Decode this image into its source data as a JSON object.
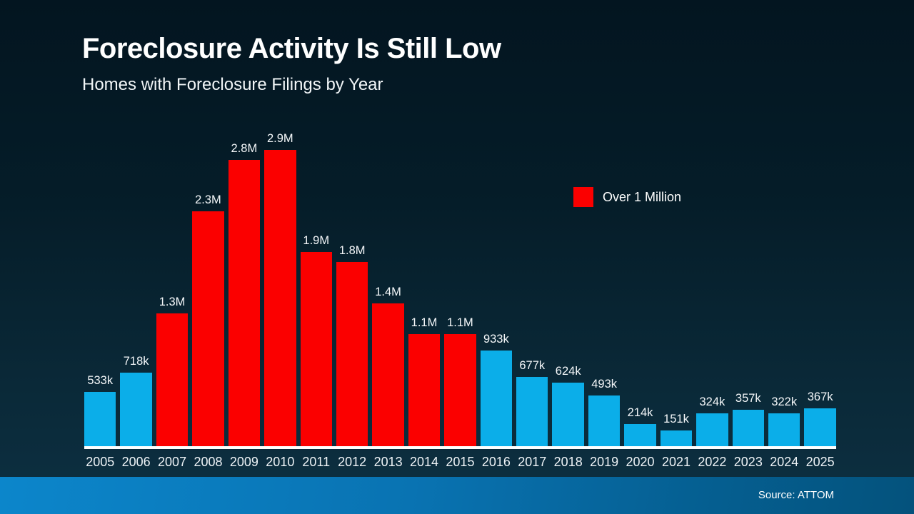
{
  "header": {
    "title": "Foreclosure Activity Is Still Low",
    "subtitle": "Homes with Foreclosure Filings by Year"
  },
  "legend": {
    "label": "Over 1 Million"
  },
  "footer": {
    "source": "Source: ATTOM"
  },
  "colors": {
    "bar_red": "#FB0000",
    "bar_blue": "#0BAEE9",
    "axis_line": "#FFFFFF",
    "footer_left": "#0C86CB",
    "footer_right": "#04527C",
    "background_top": "#031520",
    "background_bottom": "#0D3042"
  },
  "chart_data": {
    "type": "bar",
    "title": "Foreclosure Activity Is Still Low",
    "subtitle": "Homes with Foreclosure Filings by Year",
    "categories": [
      "2005",
      "2006",
      "2007",
      "2008",
      "2009",
      "2010",
      "2011",
      "2012",
      "2013",
      "2014",
      "2015",
      "2016",
      "2017",
      "2018",
      "2019",
      "2020",
      "2021",
      "2022",
      "2023",
      "2024",
      "2025"
    ],
    "values": [
      533000,
      718000,
      1300000,
      2300000,
      2800000,
      2900000,
      1900000,
      1800000,
      1400000,
      1100000,
      1100000,
      933000,
      677000,
      624000,
      493000,
      214000,
      151000,
      324000,
      357000,
      322000,
      367000
    ],
    "value_labels": [
      "533k",
      "718k",
      "1.3M",
      "2.3M",
      "2.8M",
      "2.9M",
      "1.9M",
      "1.8M",
      "1.4M",
      "1.1M",
      "1.1M",
      "933k",
      "677k",
      "624k",
      "493k",
      "214k",
      "151k",
      "324k",
      "357k",
      "322k",
      "367k"
    ],
    "bar_color_roles": [
      "blue",
      "blue",
      "red",
      "red",
      "red",
      "red",
      "red",
      "red",
      "red",
      "red",
      "red",
      "blue",
      "blue",
      "blue",
      "blue",
      "blue",
      "blue",
      "blue",
      "blue",
      "blue",
      "blue"
    ],
    "legend": [
      {
        "label": "Over 1 Million",
        "color_role": "red"
      }
    ],
    "xlabel": "",
    "ylabel": "",
    "ylim": [
      0,
      2900000
    ],
    "grid": false,
    "legend_position": "right",
    "source": "Source: ATTOM"
  }
}
